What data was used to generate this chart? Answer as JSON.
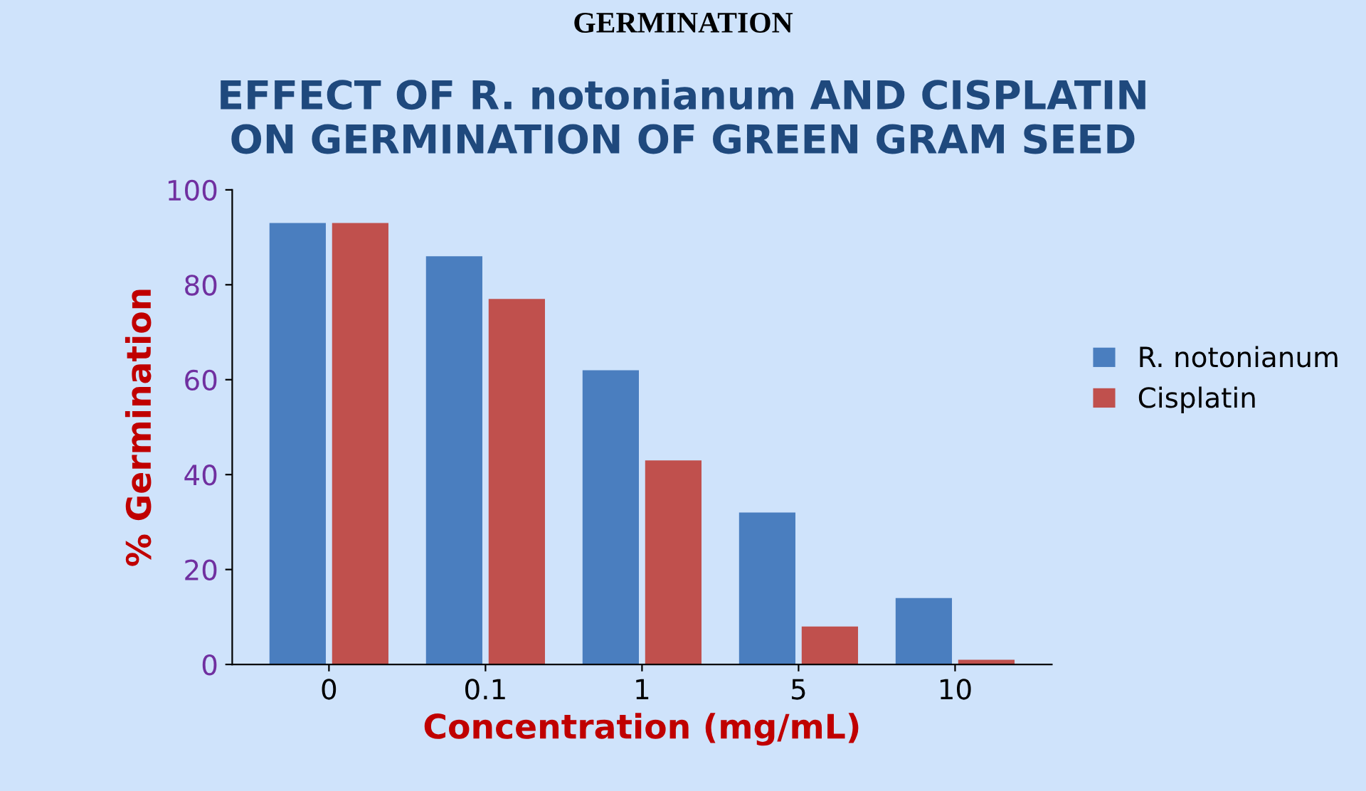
{
  "chart_data": {
    "type": "bar",
    "title": "EFFECT OF R. notonianum AND CISPLATIN\nON GERMINATION OF GREEN GRAM SEED",
    "xlabel": "Concentration (mg/mL)",
    "ylabel": "% Germination",
    "annotations": [
      "GERMINATION"
    ],
    "categories": [
      "0",
      "0.1",
      "1",
      "5",
      "10"
    ],
    "series": [
      {
        "name": "R. notonianum",
        "color": "#4a7ebf",
        "values": [
          93,
          86,
          62,
          32,
          14
        ]
      },
      {
        "name": "Cisplatin",
        "color": "#c0504d",
        "values": [
          93,
          77,
          43,
          8,
          1
        ]
      }
    ],
    "ylim": [
      0,
      100
    ],
    "yticks": [
      0,
      20,
      40,
      60,
      80,
      100
    ],
    "grid": false,
    "legend": "right"
  }
}
